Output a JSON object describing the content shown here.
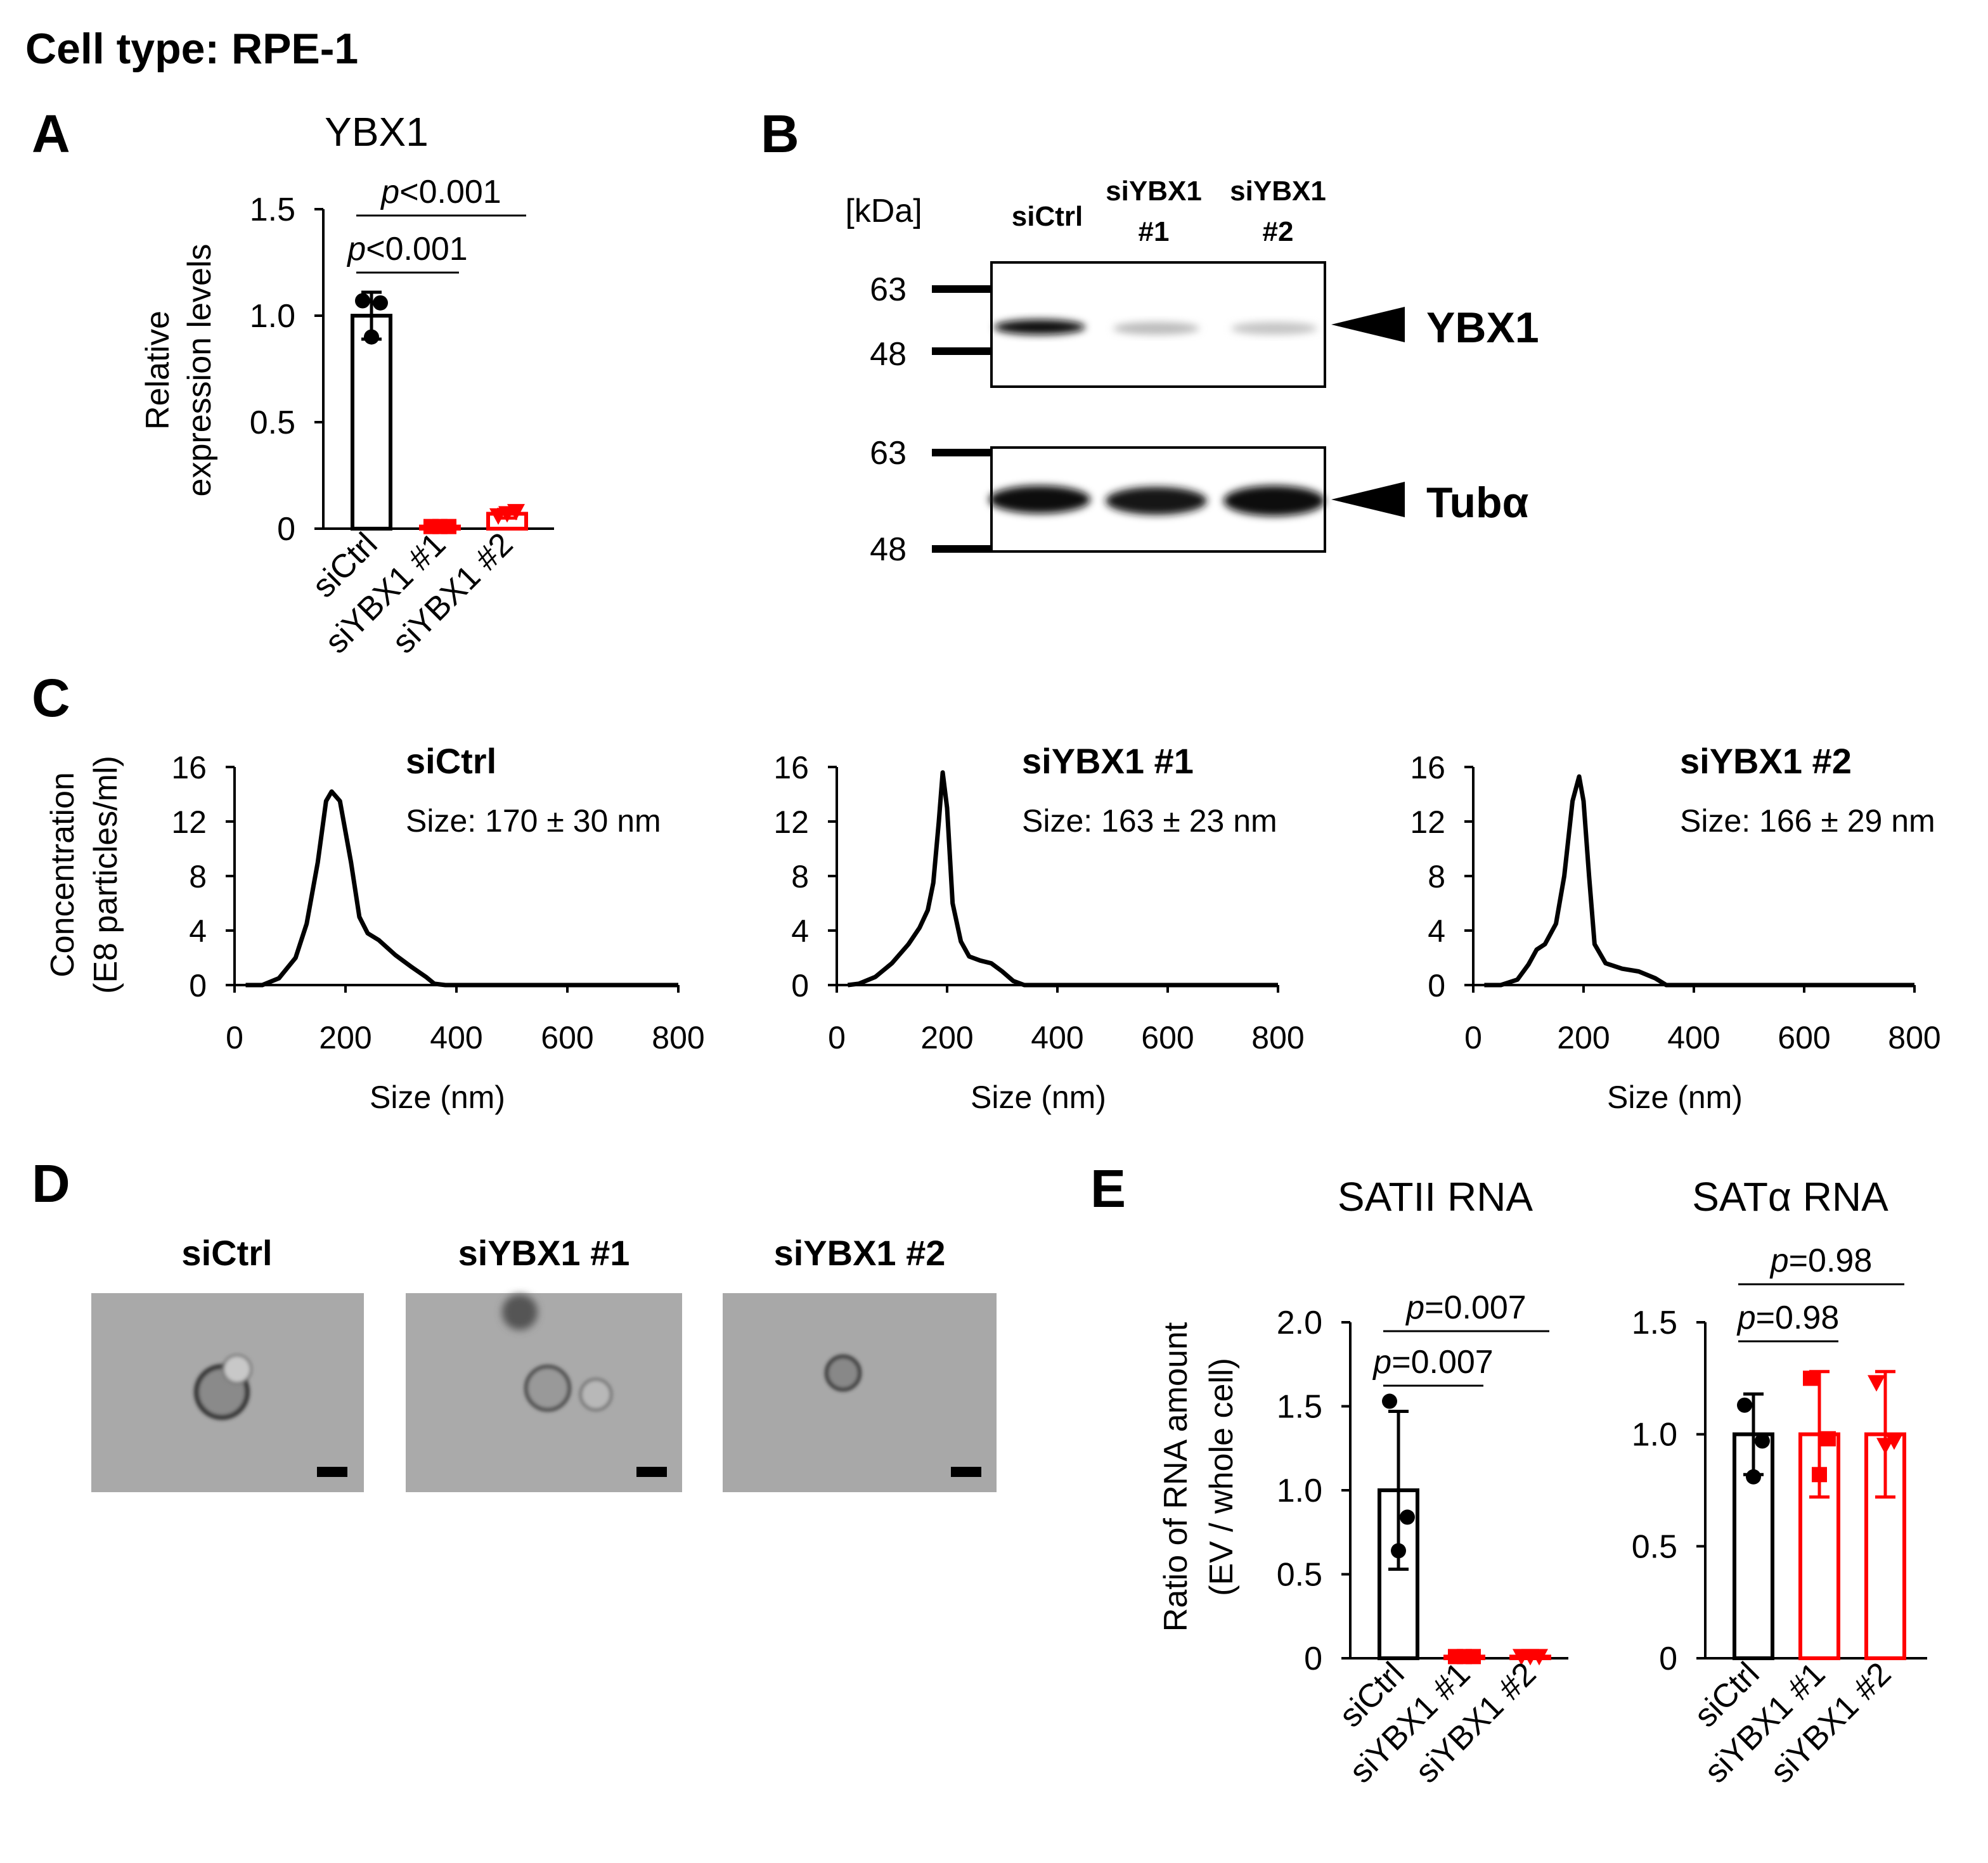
{
  "figure_title": "Cell type: RPE-1",
  "panel_labels": [
    "A",
    "B",
    "C",
    "D",
    "E"
  ],
  "blot": {
    "unit": "[kDa]",
    "lanes": [
      [
        "siCtrl"
      ],
      [
        "siYBX1",
        "#1"
      ],
      [
        "siYBX1",
        "#2"
      ]
    ],
    "panels": [
      {
        "target": "YBX1",
        "markers": [
          "63",
          "48"
        ]
      },
      {
        "target": "Tubα",
        "markers": [
          "63",
          "48"
        ]
      }
    ]
  },
  "micrographs": {
    "labels": [
      "siCtrl",
      "siYBX1 #1",
      "siYBX1 #2"
    ]
  },
  "chart_data": [
    {
      "type": "bar",
      "title": "YBX1",
      "ylabel": [
        "Relative",
        "expression levels"
      ],
      "categories": [
        "siCtrl",
        "siYBX1 #1",
        "siYBX1 #2"
      ],
      "values": [
        1.0,
        0.01,
        0.07
      ],
      "errors": [
        0.11,
        0.01,
        0.02
      ],
      "points": [
        [
          1.07,
          1.06,
          0.9
        ],
        [
          0.01,
          0.01,
          0.01
        ],
        [
          0.06,
          0.08,
          0.07
        ]
      ],
      "colors": [
        "#000000",
        "#ff0000",
        "#ff0000"
      ],
      "markers": [
        "circle",
        "square",
        "triangle"
      ],
      "ylim": [
        0,
        1.5
      ],
      "yticks": [
        0,
        0.5,
        {
          "value": 1,
          "label": "1.0"
        },
        1.5
      ],
      "comparisons": [
        {
          "from": 0,
          "to": 1,
          "symbol": "p",
          "text": "<0.001"
        },
        {
          "from": 0,
          "to": 2,
          "symbol": "p",
          "text": "<0.001"
        }
      ]
    },
    {
      "type": "line",
      "title": "siCtrl",
      "subtitle": "Size: 170 ± 30 nm",
      "xlabel": "Size (nm)",
      "ylabel": [
        "Concentration",
        "(E8 particles/ml)"
      ],
      "x": [
        20,
        50,
        80,
        110,
        130,
        150,
        165,
        175,
        190,
        210,
        225,
        240,
        260,
        290,
        320,
        345,
        360,
        380,
        800
      ],
      "values": [
        0,
        0,
        0.5,
        2,
        4.5,
        9,
        13.5,
        14.2,
        13.5,
        9,
        5,
        3.8,
        3.3,
        2.2,
        1.3,
        0.6,
        0.1,
        0,
        0
      ],
      "color": "#000000",
      "xlim": [
        0,
        800
      ],
      "xticks": [
        0,
        200,
        400,
        600,
        800
      ],
      "ylim": [
        0,
        16
      ],
      "yticks": [
        0,
        4,
        8,
        12,
        16
      ]
    },
    {
      "type": "line",
      "title": "siYBX1 #1",
      "subtitle": "Size: 163 ± 23 nm",
      "xlabel": "Size (nm)",
      "x": [
        20,
        40,
        70,
        100,
        130,
        150,
        165,
        175,
        185,
        192,
        200,
        210,
        225,
        240,
        260,
        280,
        300,
        320,
        340,
        800
      ],
      "values": [
        0,
        0.1,
        0.6,
        1.6,
        3,
        4.2,
        5.5,
        7.5,
        12,
        15.6,
        13,
        6,
        3.2,
        2.1,
        1.8,
        1.6,
        1,
        0.3,
        0,
        0
      ],
      "color": "#000000",
      "xlim": [
        0,
        800
      ],
      "xticks": [
        0,
        200,
        400,
        600,
        800
      ],
      "ylim": [
        0,
        16
      ],
      "yticks": [
        0,
        4,
        8,
        12,
        16
      ]
    },
    {
      "type": "line",
      "title": "siYBX1 #2",
      "subtitle": "Size: 166 ± 29 nm",
      "xlabel": "Size (nm)",
      "x": [
        20,
        50,
        80,
        100,
        115,
        130,
        150,
        165,
        180,
        192,
        200,
        210,
        220,
        240,
        270,
        300,
        330,
        350,
        800
      ],
      "values": [
        0,
        0,
        0.4,
        1.5,
        2.6,
        3,
        4.5,
        8,
        13.5,
        15.3,
        13.5,
        8,
        3,
        1.6,
        1.2,
        1,
        0.5,
        0,
        0
      ],
      "color": "#000000",
      "xlim": [
        0,
        800
      ],
      "xticks": [
        0,
        200,
        400,
        600,
        800
      ],
      "ylim": [
        0,
        16
      ],
      "yticks": [
        0,
        4,
        8,
        12,
        16
      ]
    },
    {
      "type": "bar",
      "title": "SATII RNA",
      "ylabel": [
        "Ratio of RNA amount",
        "(EV / whole cell)"
      ],
      "categories": [
        "siCtrl",
        "siYBX1 #1",
        "siYBX1 #2"
      ],
      "values": [
        1.0,
        0.01,
        0.01
      ],
      "errors": [
        0.47,
        0.01,
        0.01
      ],
      "points": [
        [
          1.53,
          0.84,
          0.64
        ],
        [
          0.01,
          0.01,
          0.01
        ],
        [
          0.01,
          0.01,
          0.01
        ]
      ],
      "colors": [
        "#000000",
        "#ff0000",
        "#ff0000"
      ],
      "markers": [
        "circle",
        "square",
        "triangle"
      ],
      "ylim": [
        0,
        2.0
      ],
      "yticks": [
        0,
        0.5,
        {
          "value": 1,
          "label": "1.0"
        },
        1.5,
        {
          "value": 2,
          "label": "2.0"
        }
      ],
      "comparisons": [
        {
          "from": 0,
          "to": 1,
          "symbol": "p",
          "text": "=0.007"
        },
        {
          "from": 0,
          "to": 2,
          "symbol": "p",
          "text": "=0.007"
        }
      ]
    },
    {
      "type": "bar",
      "title": "SATα RNA",
      "categories": [
        "siCtrl",
        "siYBX1 #1",
        "siYBX1 #2"
      ],
      "values": [
        1.0,
        1.0,
        1.0
      ],
      "errors": [
        0.18,
        0.28,
        0.28
      ],
      "points": [
        [
          1.13,
          0.97,
          0.81
        ],
        [
          1.25,
          0.98,
          0.82
        ],
        [
          1.23,
          0.97,
          0.95
        ]
      ],
      "colors": [
        "#000000",
        "#ff0000",
        "#ff0000"
      ],
      "markers": [
        "circle",
        "square",
        "triangle"
      ],
      "ylim": [
        0,
        1.5
      ],
      "yticks": [
        0,
        0.5,
        {
          "value": 1,
          "label": "1.0"
        },
        1.5
      ],
      "comparisons": [
        {
          "from": 0,
          "to": 1,
          "symbol": "p",
          "text": "=0.98"
        },
        {
          "from": 0,
          "to": 2,
          "symbol": "p",
          "text": "=0.98"
        }
      ]
    }
  ]
}
